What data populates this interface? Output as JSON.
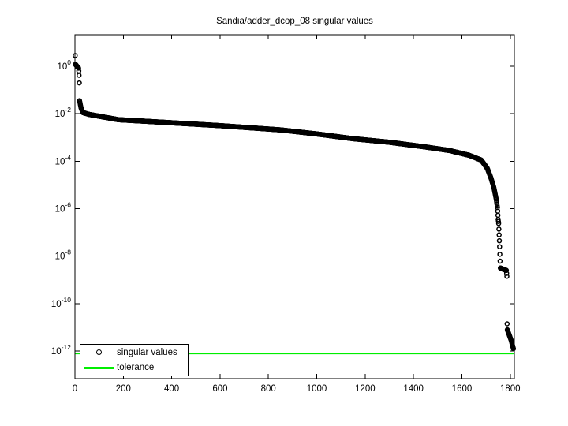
{
  "window": {
    "background": "#ffffff"
  },
  "chart_data": {
    "type": "scatter",
    "title": "Sandia/adder_dcop_08 singular values",
    "x_axis": {
      "label": "",
      "ticks": [
        0,
        200,
        400,
        600,
        800,
        1000,
        1200,
        1400,
        1600,
        1800
      ],
      "lim": [
        0,
        1817
      ]
    },
    "y_axis": {
      "label": "",
      "scale": "log10",
      "tick_exponents": [
        0,
        -2,
        -4,
        -6,
        -8,
        -10,
        -12
      ],
      "lim_log10": [
        -13.16,
        1.33
      ]
    },
    "grid": false,
    "box": true,
    "series": [
      {
        "name": "singular values",
        "marker": "circle",
        "color": "#000000",
        "n_points": 1813,
        "anchors_index_log10": [
          [
            1,
            0.45
          ],
          [
            2,
            0.08
          ],
          [
            15,
            -0.08
          ],
          [
            16,
            -0.2
          ],
          [
            17,
            -0.38
          ],
          [
            18,
            -0.7
          ],
          [
            19,
            -1.45
          ],
          [
            25,
            -1.75
          ],
          [
            33,
            -1.95
          ],
          [
            60,
            -2.03
          ],
          [
            180,
            -2.25
          ],
          [
            350,
            -2.35
          ],
          [
            600,
            -2.5
          ],
          [
            850,
            -2.68
          ],
          [
            1000,
            -2.85
          ],
          [
            1150,
            -3.05
          ],
          [
            1300,
            -3.2
          ],
          [
            1450,
            -3.4
          ],
          [
            1550,
            -3.55
          ],
          [
            1630,
            -3.75
          ],
          [
            1680,
            -3.95
          ],
          [
            1705,
            -4.3
          ],
          [
            1720,
            -4.7
          ],
          [
            1732,
            -5.1
          ],
          [
            1742,
            -5.6
          ],
          [
            1747,
            -5.95
          ],
          [
            1748,
            -6.1
          ],
          [
            1750,
            -6.45
          ],
          [
            1752,
            -6.62
          ],
          [
            1754,
            -7.1
          ],
          [
            1756,
            -7.6
          ],
          [
            1757,
            -7.92
          ],
          [
            1759,
            -8.5
          ],
          [
            1784,
            -8.6
          ],
          [
            1786,
            -8.85
          ],
          [
            1787,
            -10.85
          ],
          [
            1788,
            -11.1
          ],
          [
            1795,
            -11.3
          ],
          [
            1804,
            -11.55
          ],
          [
            1813,
            -11.9
          ]
        ]
      }
    ],
    "tolerance": {
      "name": "tolerance",
      "color": "#00ee00",
      "log10_value": -12.1
    },
    "legend": {
      "position": "southwest",
      "items": [
        {
          "label": "singular values",
          "marker": "circle"
        },
        {
          "label": "tolerance",
          "marker": "line"
        }
      ]
    }
  }
}
